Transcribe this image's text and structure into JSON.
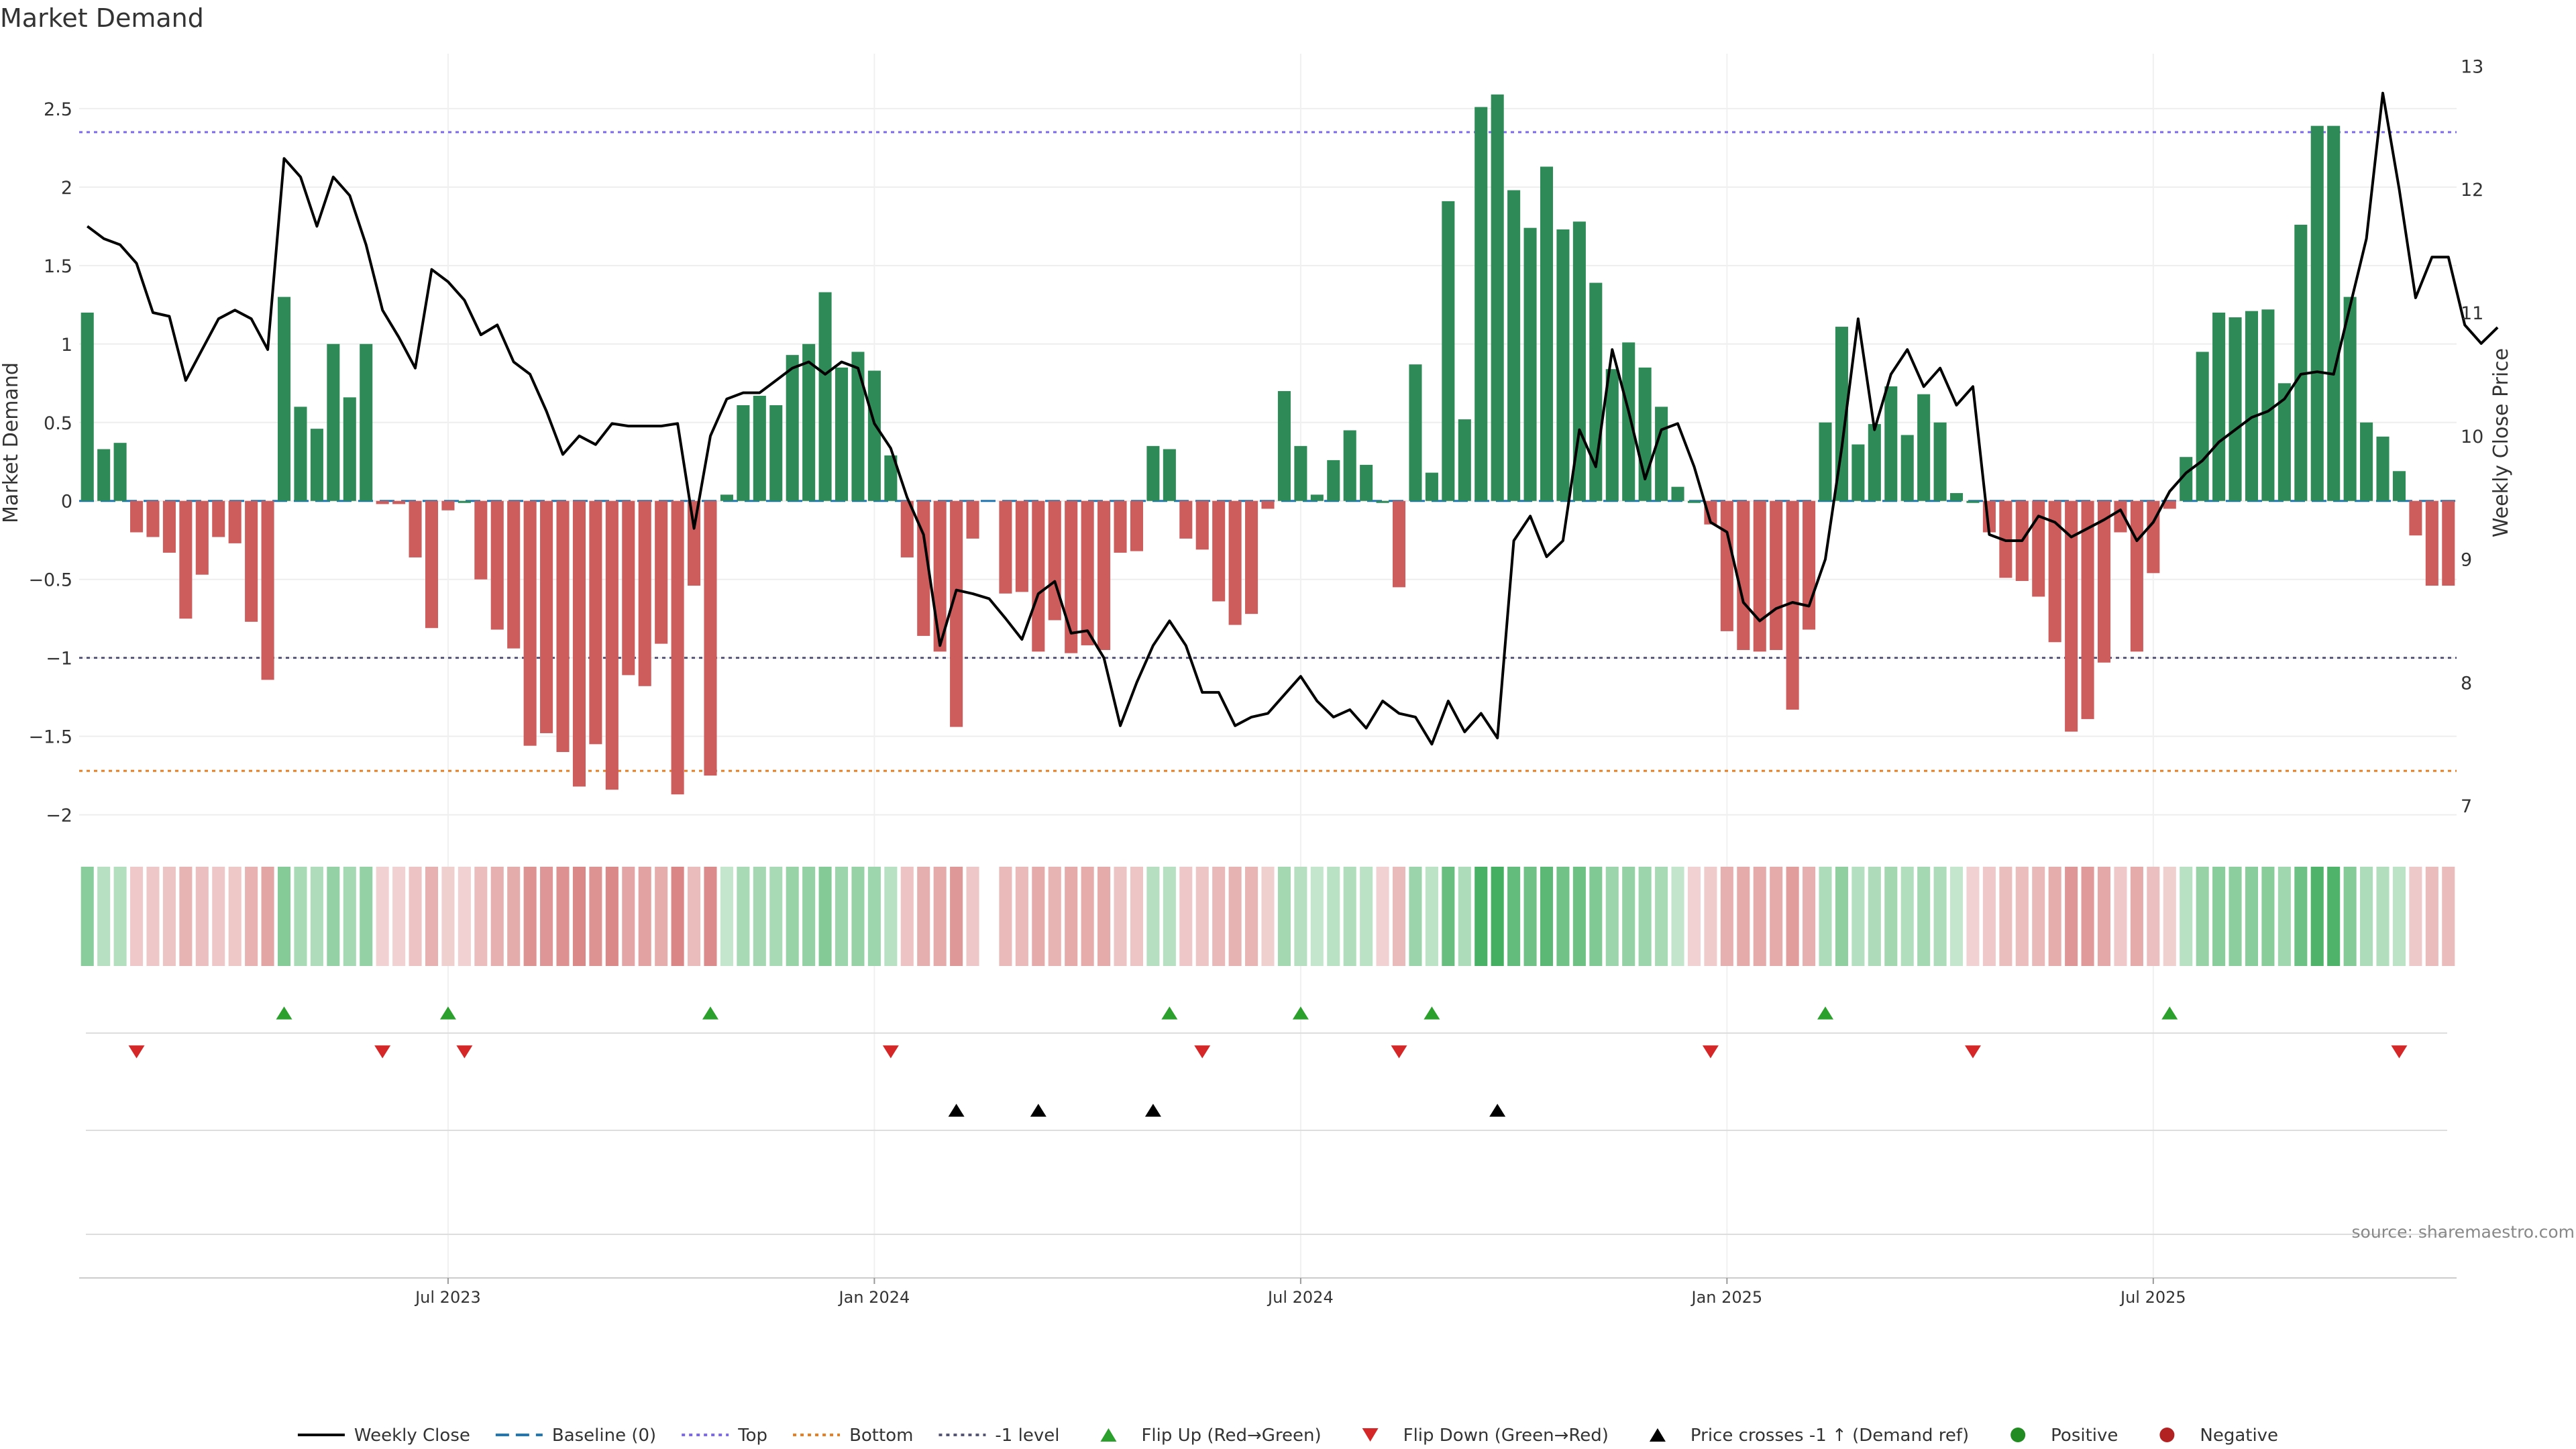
{
  "chart_data": {
    "type": "bar",
    "title": "Market Demand",
    "ylabel": "Market Demand",
    "y2label": "Weekly Close Price",
    "ylim": [
      -2.1,
      2.85
    ],
    "y2lim": [
      6.8,
      13.1
    ],
    "yticks": [
      "2.5",
      "2",
      "1.5",
      "1",
      "0.5",
      "0",
      "−0.5",
      "−1",
      "−1.5",
      "−2"
    ],
    "yticks_values": [
      2.5,
      2,
      1.5,
      1,
      0.5,
      0,
      -0.5,
      -1,
      -1.5,
      -2
    ],
    "y2ticks": [
      "13",
      "12",
      "11",
      "10",
      "9",
      "8",
      "7"
    ],
    "y2ticks_values": [
      13,
      12,
      11,
      10,
      9,
      8,
      7
    ],
    "xticks": [
      "Jul 2023",
      "Jan 2024",
      "Jul 2024",
      "Jan 2025",
      "Jul 2025"
    ],
    "xticks_week_index": [
      22,
      48,
      74,
      100,
      126
    ],
    "levels": {
      "top": 2.35,
      "bottom": -1.72,
      "minus_one": -1.0,
      "baseline": 0
    },
    "source": "source: sharemaestro.com",
    "colors": {
      "positive": "#2e8b57",
      "negative": "#cd5c5c",
      "price_line": "#000000",
      "top_line": "#7b68ee",
      "bottom_line": "#e67e22",
      "minus_one_line": "#555577",
      "baseline": "#1f77b4",
      "flip_up": "#2ca02c",
      "flip_down": "#d62728",
      "price_cross": "#000000",
      "legend_positive": "#228b22",
      "legend_negative": "#b22222"
    },
    "series": [
      {
        "name": "Market Demand",
        "values": [
          1.2,
          0.33,
          0.37,
          -0.2,
          -0.23,
          -0.33,
          -0.75,
          -0.47,
          -0.23,
          -0.27,
          -0.77,
          -1.14,
          1.3,
          0.6,
          0.46,
          1.0,
          0.66,
          1.0,
          -0.02,
          -0.02,
          -0.36,
          -0.81,
          -0.06,
          0.0,
          -0.5,
          -0.82,
          -0.94,
          -1.56,
          -1.48,
          -1.6,
          -1.82,
          -1.55,
          -1.84,
          -1.11,
          -1.18,
          -0.91,
          -1.87,
          -0.54,
          -1.75,
          0.04,
          0.61,
          0.67,
          0.61,
          0.93,
          1.0,
          1.33,
          0.85,
          0.95,
          0.83,
          0.29,
          -0.36,
          -0.86,
          -0.96,
          -1.44,
          -0.24,
          null,
          -0.59,
          -0.58,
          -0.96,
          -0.76,
          -0.97,
          -0.92,
          -0.95,
          -0.33,
          -0.32,
          0.35,
          0.33,
          -0.24,
          -0.31,
          -0.64,
          -0.79,
          -0.72,
          -0.05,
          0.7,
          0.35,
          0.04,
          0.26,
          0.45,
          0.23,
          0.0,
          -0.55,
          0.87,
          0.18,
          1.91,
          0.52,
          2.51,
          2.59,
          1.98,
          1.74,
          2.13,
          1.73,
          1.78,
          1.39,
          0.84,
          1.01,
          0.85,
          0.6,
          0.09,
          0.0,
          -0.15,
          -0.83,
          -0.95,
          -0.96,
          -0.95,
          -1.33,
          -0.82,
          0.5,
          1.11,
          0.36,
          0.49,
          0.73,
          0.42,
          0.68,
          0.5,
          0.05,
          0.0,
          -0.2,
          -0.49,
          -0.51,
          -0.61,
          -0.9,
          -1.47,
          -1.39,
          -1.03,
          -0.2,
          -0.96,
          -0.46,
          -0.05,
          0.28,
          0.95,
          1.2,
          1.17,
          1.21,
          1.22,
          0.75,
          1.76,
          2.39,
          2.39,
          1.3,
          0.5,
          0.41,
          0.19,
          -0.22,
          -0.54,
          -0.54
        ]
      },
      {
        "name": "Weekly Close",
        "axis": "right",
        "values": [
          11.7,
          11.6,
          11.55,
          11.4,
          11.0,
          10.97,
          10.45,
          10.7,
          10.95,
          11.02,
          10.95,
          10.7,
          12.25,
          12.1,
          11.7,
          12.1,
          11.95,
          11.55,
          11.02,
          10.8,
          10.55,
          11.35,
          11.25,
          11.1,
          10.82,
          10.9,
          10.6,
          10.5,
          10.2,
          9.85,
          10.0,
          9.93,
          10.1,
          10.08,
          10.08,
          10.08,
          10.1,
          9.25,
          10.0,
          10.3,
          10.35,
          10.35,
          10.45,
          10.55,
          10.6,
          10.5,
          10.6,
          10.55,
          10.1,
          9.9,
          9.5,
          9.2,
          8.3,
          8.75,
          8.72,
          8.68,
          8.52,
          8.35,
          8.72,
          8.82,
          8.4,
          8.42,
          8.2,
          7.65,
          8.0,
          8.3,
          8.5,
          8.3,
          7.92,
          7.92,
          7.65,
          7.72,
          7.75,
          7.9,
          8.05,
          7.85,
          7.72,
          7.78,
          7.63,
          7.85,
          7.75,
          7.72,
          7.5,
          7.85,
          7.6,
          7.75,
          7.55,
          9.15,
          9.35,
          9.02,
          9.15,
          10.05,
          9.75,
          10.7,
          10.2,
          9.65,
          10.05,
          10.1,
          9.75,
          9.3,
          9.22,
          8.65,
          8.5,
          8.6,
          8.65,
          8.62,
          9.0,
          9.9,
          10.95,
          10.05,
          10.5,
          10.7,
          10.4,
          10.55,
          10.25,
          10.4,
          9.2,
          9.15,
          9.15,
          9.35,
          9.3,
          9.18,
          9.25,
          9.32,
          9.4,
          9.15,
          9.3,
          9.55,
          9.7,
          9.8,
          9.95,
          10.05,
          10.15,
          10.2,
          10.3,
          10.5,
          10.52,
          10.5,
          11.05,
          11.6,
          12.78,
          12.0,
          11.12,
          11.45,
          11.45,
          10.9,
          10.75,
          10.88
        ]
      }
    ],
    "markers": {
      "flip_up_week_index": [
        12,
        22,
        38,
        66,
        74,
        82,
        106,
        127
      ],
      "flip_down_week_index": [
        3,
        18,
        23,
        49,
        68,
        80,
        99,
        115,
        141
      ],
      "price_cross_week_index": [
        53,
        58,
        65,
        86
      ]
    },
    "legend": [
      {
        "label": "Weekly Close",
        "kind": "solid-line"
      },
      {
        "label": "Baseline (0)",
        "kind": "dashed-line"
      },
      {
        "label": "Top",
        "kind": "dotted-line-top"
      },
      {
        "label": "Bottom",
        "kind": "dotted-line-bottom"
      },
      {
        "label": "-1 level",
        "kind": "dotted-line-minus-one"
      },
      {
        "label": "Flip Up (Red→Green)",
        "kind": "triangle-up-green"
      },
      {
        "label": "Flip Down (Green→Red)",
        "kind": "triangle-down-red"
      },
      {
        "label": "Price crosses -1 ↑ (Demand ref)",
        "kind": "triangle-up-black"
      },
      {
        "label": "Positive",
        "kind": "circle-green"
      },
      {
        "label": "Negative",
        "kind": "circle-red"
      }
    ]
  }
}
